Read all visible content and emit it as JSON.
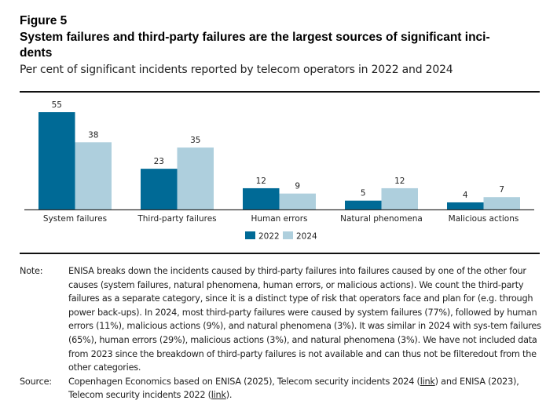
{
  "figure": {
    "label": "Figure 5",
    "title": "System failures and third-party failures are the largest sources of significant inci-dents",
    "title_line1": "System failures and third-party failures are the largest sources of significant inci-",
    "title_line2": "dents",
    "subtitle": "Per cent of significant incidents reported by telecom operators in 2022 and 2024"
  },
  "chart_data": {
    "type": "bar",
    "title": "System failures and third-party failures are the largest sources of significant incidents",
    "subtitle": "Per cent of significant incidents reported by telecom operators in 2022 and 2024",
    "xlabel": "",
    "ylabel": "",
    "categories": [
      "System failures",
      "Third-party failures",
      "Human errors",
      "Natural phenomena",
      "Malicious actions"
    ],
    "series": [
      {
        "name": "2022",
        "color": "#006a96",
        "values": [
          55,
          23,
          12,
          5,
          4
        ]
      },
      {
        "name": "2024",
        "color": "#aecfdd",
        "values": [
          38,
          35,
          9,
          12,
          7
        ]
      }
    ],
    "ylim": [
      0,
      60
    ],
    "grid": false,
    "y_axis_visible": false,
    "data_labels": true,
    "legend": {
      "placement": "bottom-center",
      "entries": [
        "2022",
        "2024"
      ]
    }
  },
  "notes": {
    "note_key": "Note:",
    "note_text": "ENISA breaks down the incidents caused by third-party failures into failures caused by one of the other four causes (system failures, natural phenomena, human errors, or malicious actions). We count the third-party failures as a separate category, since it is a distinct type of risk that operators face and plan for (e.g. through power back-ups). In 2024, most third-party failures were caused by system failures (77%), followed by human errors (11%), malicious actions (9%), and natural phenomena (3%). It was similar in 2024 with sys-tem failures (65%), human errors (29%), malicious actions (3%), and natural phenomena (3%). We have not included data from 2023 since the breakdown of third-party failures is not available and can thus not be filteredout from the other categories.",
    "source_key": "Source:",
    "source_text_1": "Copenhagen Economics based on ENISA (2025), Telecom security incidents 2024 (",
    "source_link_1": "link",
    "source_text_2": ") and ENISA (2023), Telecom security incidents 2022 (",
    "source_link_2": "link",
    "source_text_3": ")."
  }
}
